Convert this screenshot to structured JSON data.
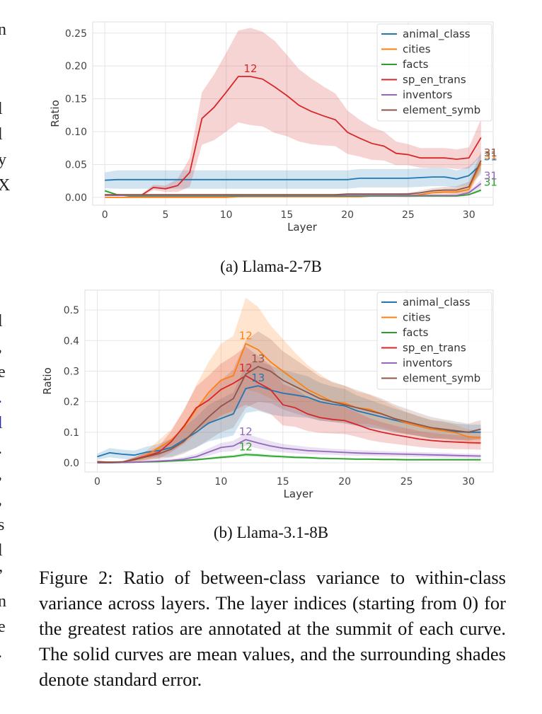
{
  "side_text": [
    "n",
    "l",
    "l",
    "y",
    "X",
    "l",
    ",",
    "e",
    ".",
    "l",
    ".",
    ",",
    ",",
    "s",
    "l",
    "’",
    "n",
    "e",
    "."
  ],
  "caption": {
    "text": "Figure 2: Ratio of between-class variance to within-class variance across layers. The layer indices (starting from 0) for the greatest ratios are annotated at the summit of each curve. The solid curves are mean values, and the surrounding shades denote standard error."
  },
  "colors": {
    "animal_class": "#1f77b4",
    "cities": "#ff7f0e",
    "facts": "#2ca02c",
    "sp_en_trans": "#d62728",
    "inventors": "#9467bd",
    "element_symb": "#8c564b"
  },
  "chart_data": [
    {
      "type": "line",
      "caption": "(a) Llama-2-7B",
      "xlabel": "Layer",
      "ylabel": "Ratio",
      "xlim": [
        -1,
        32
      ],
      "ylim": [
        -0.012,
        0.267
      ],
      "xticks": [
        0,
        5,
        10,
        15,
        20,
        25,
        30
      ],
      "yticks": [
        0.0,
        0.05,
        0.1,
        0.15,
        0.2,
        0.25
      ],
      "ytick_labels": [
        "0.00",
        "0.05",
        "0.10",
        "0.15",
        "0.20",
        "0.25"
      ],
      "grid": true,
      "legend_position": "top-right",
      "x": [
        0,
        1,
        2,
        3,
        4,
        5,
        6,
        7,
        8,
        9,
        10,
        11,
        12,
        13,
        14,
        15,
        16,
        17,
        18,
        19,
        20,
        21,
        22,
        23,
        24,
        25,
        26,
        27,
        28,
        29,
        30,
        31
      ],
      "series": [
        {
          "name": "animal_class",
          "annotation": "31",
          "values": [
            0.026,
            0.027,
            0.027,
            0.027,
            0.027,
            0.027,
            0.027,
            0.027,
            0.027,
            0.027,
            0.027,
            0.027,
            0.027,
            0.027,
            0.027,
            0.027,
            0.027,
            0.027,
            0.027,
            0.027,
            0.027,
            0.029,
            0.029,
            0.029,
            0.029,
            0.029,
            0.03,
            0.031,
            0.031,
            0.028,
            0.033,
            0.05
          ],
          "err": [
            0.012,
            0.014,
            0.014,
            0.014,
            0.014,
            0.014,
            0.014,
            0.014,
            0.014,
            0.014,
            0.014,
            0.014,
            0.014,
            0.014,
            0.014,
            0.014,
            0.014,
            0.014,
            0.014,
            0.014,
            0.014,
            0.014,
            0.014,
            0.014,
            0.014,
            0.014,
            0.014,
            0.014,
            0.014,
            0.013,
            0.014,
            0.015
          ]
        },
        {
          "name": "cities",
          "annotation": "31",
          "values": [
            0.0,
            0.0,
            0.0,
            0.0,
            0.0,
            0.0,
            0.0,
            0.0,
            0.0,
            0.0,
            0.0,
            0.001,
            0.001,
            0.001,
            0.001,
            0.001,
            0.001,
            0.001,
            0.001,
            0.001,
            0.001,
            0.001,
            0.002,
            0.002,
            0.002,
            0.002,
            0.004,
            0.007,
            0.008,
            0.008,
            0.012,
            0.052
          ],
          "err": [
            0.001,
            0.001,
            0.001,
            0.001,
            0.001,
            0.001,
            0.001,
            0.001,
            0.001,
            0.001,
            0.001,
            0.001,
            0.001,
            0.001,
            0.001,
            0.001,
            0.001,
            0.001,
            0.001,
            0.001,
            0.001,
            0.001,
            0.001,
            0.001,
            0.001,
            0.002,
            0.003,
            0.004,
            0.005,
            0.006,
            0.008,
            0.012
          ]
        },
        {
          "name": "facts",
          "annotation": "31",
          "values": [
            0.01,
            0.004,
            0.002,
            0.002,
            0.002,
            0.002,
            0.002,
            0.002,
            0.002,
            0.002,
            0.002,
            0.002,
            0.002,
            0.002,
            0.002,
            0.002,
            0.002,
            0.002,
            0.002,
            0.002,
            0.002,
            0.002,
            0.002,
            0.002,
            0.002,
            0.002,
            0.002,
            0.002,
            0.002,
            0.002,
            0.004,
            0.011
          ],
          "err": [
            0.002,
            0.001,
            0.001,
            0.001,
            0.001,
            0.001,
            0.001,
            0.001,
            0.001,
            0.001,
            0.001,
            0.001,
            0.001,
            0.001,
            0.001,
            0.001,
            0.001,
            0.001,
            0.001,
            0.001,
            0.001,
            0.001,
            0.001,
            0.001,
            0.001,
            0.001,
            0.001,
            0.001,
            0.001,
            0.001,
            0.001,
            0.003
          ]
        },
        {
          "name": "sp_en_trans",
          "annotation": "12",
          "values": [
            0.003,
            0.003,
            0.003,
            0.003,
            0.015,
            0.013,
            0.018,
            0.038,
            0.12,
            0.137,
            0.16,
            0.184,
            0.184,
            0.18,
            0.168,
            0.155,
            0.14,
            0.131,
            0.124,
            0.118,
            0.099,
            0.09,
            0.082,
            0.078,
            0.067,
            0.065,
            0.06,
            0.06,
            0.06,
            0.058,
            0.06,
            0.091
          ],
          "err": [
            0.001,
            0.001,
            0.001,
            0.002,
            0.004,
            0.005,
            0.01,
            0.022,
            0.04,
            0.05,
            0.06,
            0.07,
            0.074,
            0.072,
            0.07,
            0.062,
            0.055,
            0.05,
            0.045,
            0.04,
            0.033,
            0.028,
            0.025,
            0.022,
            0.018,
            0.016,
            0.015,
            0.015,
            0.015,
            0.015,
            0.016,
            0.028
          ]
        },
        {
          "name": "inventors",
          "annotation": "31",
          "values": [
            0.003,
            0.003,
            0.003,
            0.003,
            0.003,
            0.003,
            0.003,
            0.003,
            0.003,
            0.003,
            0.003,
            0.003,
            0.003,
            0.003,
            0.003,
            0.003,
            0.003,
            0.003,
            0.003,
            0.003,
            0.003,
            0.003,
            0.003,
            0.003,
            0.003,
            0.003,
            0.003,
            0.003,
            0.003,
            0.003,
            0.007,
            0.021
          ],
          "err": [
            0.001,
            0.001,
            0.001,
            0.001,
            0.001,
            0.001,
            0.001,
            0.001,
            0.001,
            0.001,
            0.001,
            0.001,
            0.001,
            0.001,
            0.001,
            0.001,
            0.001,
            0.001,
            0.001,
            0.001,
            0.001,
            0.001,
            0.001,
            0.001,
            0.001,
            0.001,
            0.001,
            0.001,
            0.001,
            0.001,
            0.002,
            0.006
          ]
        },
        {
          "name": "element_symb",
          "annotation": "31",
          "values": [
            0.004,
            0.004,
            0.004,
            0.004,
            0.004,
            0.004,
            0.004,
            0.004,
            0.004,
            0.004,
            0.004,
            0.004,
            0.004,
            0.004,
            0.004,
            0.004,
            0.004,
            0.004,
            0.004,
            0.004,
            0.005,
            0.005,
            0.005,
            0.005,
            0.005,
            0.005,
            0.007,
            0.01,
            0.011,
            0.011,
            0.016,
            0.056
          ],
          "err": [
            0.001,
            0.001,
            0.001,
            0.001,
            0.001,
            0.001,
            0.001,
            0.001,
            0.001,
            0.001,
            0.001,
            0.001,
            0.001,
            0.001,
            0.001,
            0.001,
            0.001,
            0.001,
            0.001,
            0.001,
            0.001,
            0.001,
            0.001,
            0.001,
            0.001,
            0.002,
            0.003,
            0.004,
            0.005,
            0.006,
            0.008,
            0.014
          ]
        }
      ]
    },
    {
      "type": "line",
      "caption": "(b) Llama-3.1-8B",
      "xlabel": "Layer",
      "ylabel": "Ratio",
      "xlim": [
        -1,
        32
      ],
      "ylim": [
        -0.03,
        0.565
      ],
      "xticks": [
        0,
        5,
        10,
        15,
        20,
        25,
        30
      ],
      "yticks": [
        0.0,
        0.1,
        0.2,
        0.3,
        0.4,
        0.5
      ],
      "ytick_labels": [
        "0.0",
        "0.1",
        "0.2",
        "0.3",
        "0.4",
        "0.5"
      ],
      "grid": true,
      "legend_position": "top-right",
      "x": [
        0,
        1,
        2,
        3,
        4,
        5,
        6,
        7,
        8,
        9,
        10,
        11,
        12,
        13,
        14,
        15,
        16,
        17,
        18,
        19,
        20,
        21,
        22,
        23,
        24,
        25,
        26,
        27,
        28,
        29,
        30,
        31
      ],
      "series": [
        {
          "name": "animal_class",
          "annotation": "13",
          "values": [
            0.02,
            0.033,
            0.028,
            0.025,
            0.035,
            0.04,
            0.05,
            0.075,
            0.1,
            0.13,
            0.145,
            0.16,
            0.243,
            0.252,
            0.238,
            0.228,
            0.222,
            0.215,
            0.2,
            0.192,
            0.186,
            0.17,
            0.16,
            0.15,
            0.14,
            0.13,
            0.12,
            0.11,
            0.108,
            0.102,
            0.1,
            0.1
          ],
          "err": [
            0.01,
            0.015,
            0.015,
            0.015,
            0.018,
            0.022,
            0.03,
            0.04,
            0.05,
            0.06,
            0.065,
            0.07,
            0.08,
            0.082,
            0.08,
            0.076,
            0.072,
            0.068,
            0.062,
            0.058,
            0.055,
            0.05,
            0.046,
            0.042,
            0.038,
            0.035,
            0.032,
            0.03,
            0.028,
            0.026,
            0.025,
            0.025
          ]
        },
        {
          "name": "cities",
          "annotation": "12",
          "values": [
            0.002,
            0.002,
            0.002,
            0.01,
            0.025,
            0.05,
            0.075,
            0.115,
            0.175,
            0.23,
            0.27,
            0.285,
            0.39,
            0.37,
            0.33,
            0.3,
            0.27,
            0.24,
            0.22,
            0.2,
            0.195,
            0.18,
            0.175,
            0.16,
            0.145,
            0.13,
            0.12,
            0.11,
            0.105,
            0.098,
            0.085,
            0.082
          ],
          "err": [
            0.002,
            0.002,
            0.003,
            0.008,
            0.015,
            0.025,
            0.035,
            0.055,
            0.08,
            0.1,
            0.12,
            0.13,
            0.15,
            0.14,
            0.12,
            0.105,
            0.09,
            0.08,
            0.07,
            0.062,
            0.058,
            0.052,
            0.048,
            0.044,
            0.04,
            0.036,
            0.032,
            0.03,
            0.028,
            0.026,
            0.024,
            0.022
          ]
        },
        {
          "name": "facts",
          "annotation": "12",
          "values": [
            0.0,
            0.0,
            0.001,
            0.002,
            0.003,
            0.004,
            0.006,
            0.008,
            0.01,
            0.014,
            0.018,
            0.021,
            0.027,
            0.025,
            0.022,
            0.02,
            0.018,
            0.017,
            0.015,
            0.014,
            0.013,
            0.012,
            0.012,
            0.011,
            0.011,
            0.01,
            0.01,
            0.01,
            0.01,
            0.01,
            0.01,
            0.01
          ],
          "err": [
            0.001,
            0.001,
            0.001,
            0.001,
            0.001,
            0.002,
            0.002,
            0.003,
            0.003,
            0.004,
            0.005,
            0.005,
            0.006,
            0.006,
            0.005,
            0.005,
            0.004,
            0.004,
            0.004,
            0.003,
            0.003,
            0.003,
            0.003,
            0.003,
            0.003,
            0.003,
            0.003,
            0.003,
            0.003,
            0.003,
            0.003,
            0.003
          ]
        },
        {
          "name": "sp_en_trans",
          "annotation": "12",
          "values": [
            0.004,
            0.002,
            0.002,
            0.012,
            0.022,
            0.035,
            0.07,
            0.12,
            0.18,
            0.205,
            0.24,
            0.26,
            0.285,
            0.262,
            0.24,
            0.19,
            0.18,
            0.16,
            0.148,
            0.142,
            0.138,
            0.125,
            0.11,
            0.1,
            0.092,
            0.085,
            0.078,
            0.073,
            0.07,
            0.068,
            0.066,
            0.065
          ],
          "err": [
            0.002,
            0.002,
            0.002,
            0.006,
            0.012,
            0.02,
            0.035,
            0.055,
            0.07,
            0.08,
            0.085,
            0.09,
            0.095,
            0.088,
            0.08,
            0.068,
            0.062,
            0.056,
            0.05,
            0.046,
            0.044,
            0.04,
            0.036,
            0.033,
            0.03,
            0.028,
            0.026,
            0.025,
            0.024,
            0.023,
            0.022,
            0.022
          ]
        },
        {
          "name": "inventors",
          "annotation": "12",
          "values": [
            0.0,
            0.0,
            0.001,
            0.002,
            0.004,
            0.006,
            0.008,
            0.012,
            0.02,
            0.035,
            0.05,
            0.055,
            0.076,
            0.065,
            0.055,
            0.048,
            0.044,
            0.04,
            0.038,
            0.036,
            0.034,
            0.032,
            0.031,
            0.03,
            0.029,
            0.028,
            0.027,
            0.026,
            0.025,
            0.024,
            0.023,
            0.022
          ],
          "err": [
            0.001,
            0.001,
            0.001,
            0.002,
            0.003,
            0.004,
            0.005,
            0.007,
            0.009,
            0.012,
            0.015,
            0.017,
            0.02,
            0.018,
            0.016,
            0.014,
            0.013,
            0.012,
            0.011,
            0.01,
            0.01,
            0.009,
            0.009,
            0.009,
            0.008,
            0.008,
            0.008,
            0.008,
            0.008,
            0.007,
            0.007,
            0.007
          ]
        },
        {
          "name": "element_symb",
          "annotation": "13",
          "values": [
            0.002,
            0.002,
            0.003,
            0.01,
            0.02,
            0.03,
            0.045,
            0.07,
            0.11,
            0.15,
            0.185,
            0.21,
            0.29,
            0.315,
            0.3,
            0.27,
            0.25,
            0.23,
            0.21,
            0.2,
            0.19,
            0.18,
            0.17,
            0.16,
            0.145,
            0.135,
            0.125,
            0.115,
            0.11,
            0.105,
            0.1,
            0.11
          ],
          "err": [
            0.002,
            0.002,
            0.003,
            0.007,
            0.012,
            0.018,
            0.028,
            0.04,
            0.06,
            0.075,
            0.085,
            0.095,
            0.11,
            0.115,
            0.105,
            0.095,
            0.088,
            0.08,
            0.072,
            0.066,
            0.062,
            0.058,
            0.054,
            0.05,
            0.046,
            0.042,
            0.038,
            0.035,
            0.032,
            0.03,
            0.028,
            0.03
          ]
        }
      ]
    }
  ]
}
